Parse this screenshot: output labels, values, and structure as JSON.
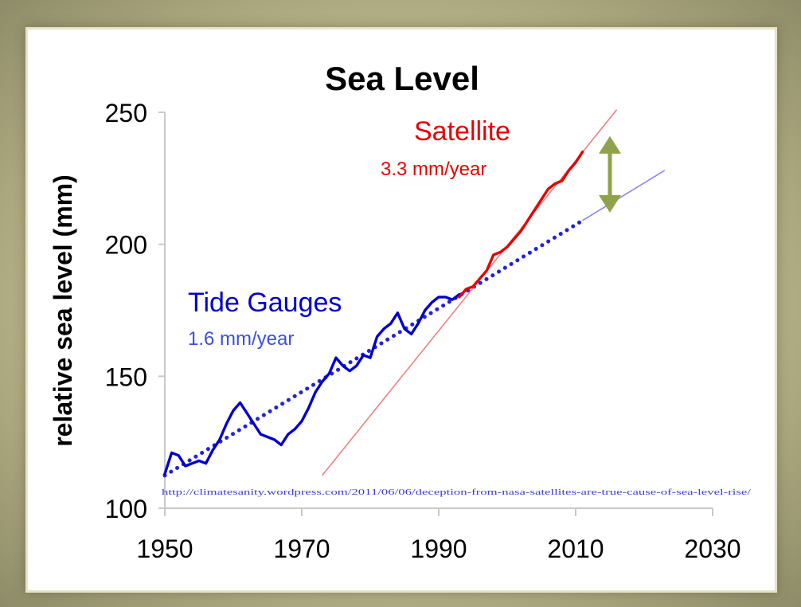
{
  "chart_data": {
    "type": "line",
    "title": "Sea Level",
    "xlabel": "",
    "ylabel": "relative sea level (mm)",
    "xlim": [
      1950,
      2030
    ],
    "ylim": [
      100,
      250
    ],
    "x_ticks": [
      "1950",
      "1970",
      "1990",
      "2010",
      "2030"
    ],
    "y_ticks": [
      "100",
      "150",
      "200",
      "250"
    ],
    "grid": false,
    "series": [
      {
        "name": "Tide Gauges",
        "color": "#0000cc",
        "x": [
          1950,
          1951,
          1952,
          1953,
          1954,
          1955,
          1956,
          1957,
          1958,
          1959,
          1960,
          1961,
          1962,
          1963,
          1964,
          1965,
          1966,
          1967,
          1968,
          1969,
          1970,
          1971,
          1972,
          1973,
          1974,
          1975,
          1976,
          1977,
          1978,
          1979,
          1980,
          1981,
          1982,
          1983,
          1984,
          1985,
          1986,
          1987,
          1988,
          1989,
          1990,
          1991,
          1992,
          1993
        ],
        "values": [
          113,
          121,
          120,
          116,
          117,
          118,
          117,
          122,
          126,
          132,
          137,
          140,
          136,
          132,
          128,
          127,
          126,
          124,
          128,
          130,
          133,
          138,
          144,
          148,
          151,
          157,
          154,
          152,
          154,
          158,
          157,
          165,
          168,
          170,
          174,
          168,
          166,
          170,
          175,
          178,
          180,
          180,
          179,
          181
        ]
      },
      {
        "name": "Satellite",
        "color": "#e60000",
        "x": [
          1993,
          1994,
          1995,
          1996,
          1997,
          1998,
          1999,
          2000,
          2001,
          2002,
          2003,
          2004,
          2005,
          2006,
          2007,
          2008,
          2009,
          2010,
          2011
        ],
        "values": [
          180,
          183,
          184,
          187,
          190,
          196,
          197,
          199,
          202,
          205,
          209,
          213,
          217,
          221,
          223,
          224,
          228,
          231,
          235
        ]
      }
    ],
    "trend_lines": [
      {
        "label": "1.6 mm/year",
        "color": "#2222dd",
        "x": [
          1950,
          2011
        ],
        "values": [
          112.4,
          209.0
        ],
        "style": "dotted"
      },
      {
        "label": "",
        "color": "#8888ee",
        "x": [
          2011,
          2023
        ],
        "values": [
          209.0,
          228.0
        ],
        "style": "thin"
      },
      {
        "label": "3.3 mm/year",
        "color": "#f08080",
        "x": [
          1973,
          2016
        ],
        "values": [
          112.5,
          251
        ],
        "style": "thin"
      }
    ],
    "annotations": {
      "tide_name": "Tide Gauges",
      "tide_rate": "1.6 mm/year",
      "sat_name": "Satellite",
      "sat_rate": "3.3 mm/year",
      "source_url": "http://climatesanity.wordpress.com/2011/06/06/deception-from-nasa-satellites-are-true-cause-of-sea-level-rise/"
    },
    "arrow": {
      "x": 2015,
      "y_from": 212,
      "y_to": 241,
      "color": "#8fa34a"
    }
  }
}
